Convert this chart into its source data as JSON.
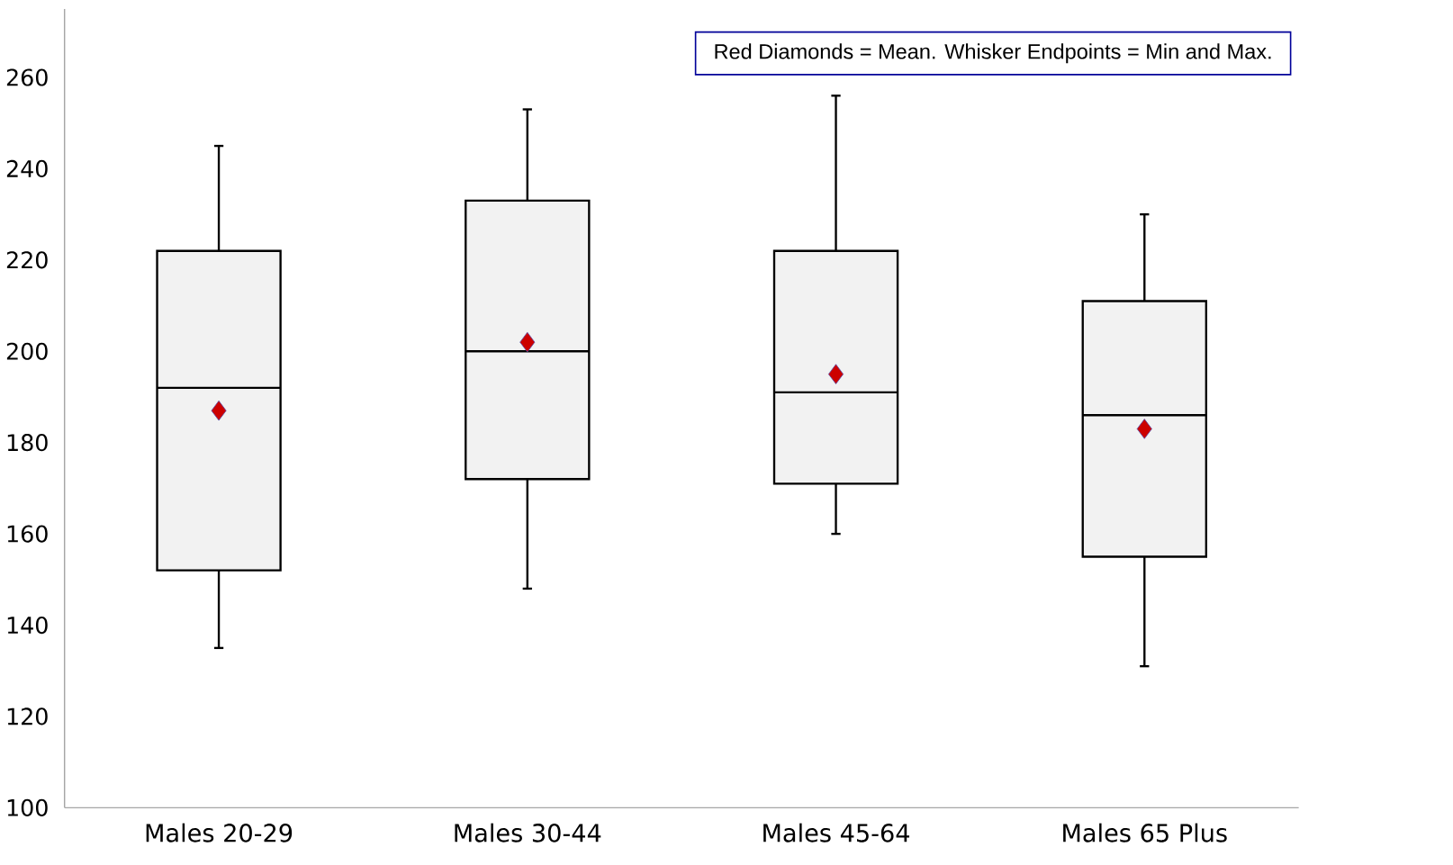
{
  "chart_data": {
    "type": "box",
    "categories": [
      "Males 20-29",
      "Males 30-44",
      "Males 45-64",
      "Males 65 Plus"
    ],
    "boxes": [
      {
        "low": 135,
        "q1": 152,
        "median": 192,
        "q3": 222,
        "high": 245,
        "mean": 187
      },
      {
        "low": 148,
        "q1": 172,
        "median": 200,
        "q3": 233,
        "high": 253,
        "mean": 202
      },
      {
        "low": 160,
        "q1": 171,
        "median": 191,
        "q3": 222,
        "high": 256,
        "mean": 195
      },
      {
        "low": 131,
        "q1": 155,
        "median": 186,
        "q3": 211,
        "high": 230,
        "mean": 183
      }
    ],
    "color": "#f2f2f2",
    "ylim": [
      100,
      275
    ],
    "yticks": [
      100,
      120,
      140,
      160,
      180,
      200,
      220,
      240,
      260
    ],
    "annotations": [
      "Red Diamonds = Mean. Whisker Endpoints = Min and Max."
    ]
  }
}
